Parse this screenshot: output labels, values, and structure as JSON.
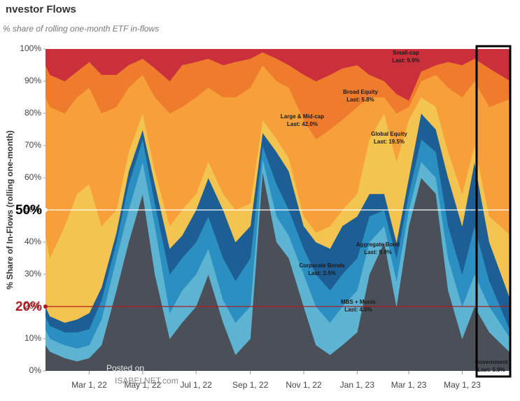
{
  "chart_data": {
    "type": "stacked-area",
    "title": "nvestor Flows",
    "subtitle": "% share of rolling one-month ETF in-flows",
    "y_label": "% Share of In-Flows (rolling one-month)",
    "x": [
      "2022-01-10",
      "2022-01-15",
      "2022-02-01",
      "2022-02-15",
      "2022-03-01",
      "2022-03-15",
      "2022-04-01",
      "2022-04-15",
      "2022-05-01",
      "2022-05-15",
      "2022-06-01",
      "2022-06-15",
      "2022-07-01",
      "2022-07-15",
      "2022-08-01",
      "2022-08-15",
      "2022-09-01",
      "2022-09-15",
      "2022-10-01",
      "2022-10-15",
      "2022-11-01",
      "2022-11-15",
      "2022-12-01",
      "2022-12-15",
      "2023-01-01",
      "2023-01-15",
      "2023-02-01",
      "2023-02-15",
      "2023-03-01",
      "2023-03-15",
      "2023-04-01",
      "2023-04-15",
      "2023-05-01",
      "2023-05-15",
      "2023-06-01",
      "2023-06-24"
    ],
    "xlim": [
      "2022-01-10",
      "2023-06-24"
    ],
    "xticks": [
      {
        "value": "2022-03-01",
        "label": "Mar 1, 22"
      },
      {
        "value": "2022-05-01",
        "label": "May 1, 22"
      },
      {
        "value": "2022-07-01",
        "label": "Jul 1, 22"
      },
      {
        "value": "2022-09-01",
        "label": "Sep 1, 22"
      },
      {
        "value": "2022-11-01",
        "label": "Nov 1, 22"
      },
      {
        "value": "2023-01-01",
        "label": "Jan 1, 23"
      },
      {
        "value": "2023-03-01",
        "label": "Mar 1, 23"
      },
      {
        "value": "2023-05-01",
        "label": "May 1, 23"
      }
    ],
    "ylim": [
      0,
      100
    ],
    "yticks": [
      {
        "value": 0,
        "label": "0%"
      },
      {
        "value": 10,
        "label": "10%"
      },
      {
        "value": 20,
        "label": "20%"
      },
      {
        "value": 30,
        "label": "30%"
      },
      {
        "value": 40,
        "label": "40%"
      },
      {
        "value": 50,
        "label": "50%"
      },
      {
        "value": 60,
        "label": "60%"
      },
      {
        "value": 70,
        "label": "70%"
      },
      {
        "value": 80,
        "label": "80%"
      },
      {
        "value": 90,
        "label": "90%"
      },
      {
        "value": 100,
        "label": "100%"
      }
    ],
    "series": [
      {
        "name": "Government",
        "last_label": "Last: 5.9%",
        "color": "#4b4f58",
        "values": [
          8,
          6,
          4,
          3,
          4,
          8,
          25,
          40,
          55,
          30,
          10,
          15,
          20,
          30,
          15,
          5,
          10,
          62,
          40,
          35,
          20,
          8,
          5,
          8,
          12,
          30,
          40,
          20,
          45,
          60,
          55,
          25,
          10,
          20,
          12,
          5.9
        ]
      },
      {
        "name": "MBS + Munis",
        "last_label": "Last: 4.6%",
        "color": "#5cb4d2",
        "values": [
          5,
          4,
          4,
          4,
          4,
          8,
          10,
          10,
          10,
          15,
          8,
          10,
          10,
          8,
          7,
          10,
          10,
          4,
          8,
          7,
          10,
          12,
          10,
          12,
          13,
          10,
          5,
          8,
          5,
          5,
          5,
          10,
          10,
          10,
          8,
          4.6
        ]
      },
      {
        "name": "Corporate Bonds",
        "last_label": "Last: 2.5%",
        "color": "#2b8fc2",
        "values": [
          4,
          4,
          4,
          5,
          5,
          6,
          5,
          8,
          7,
          7,
          12,
          10,
          10,
          10,
          13,
          13,
          15,
          4,
          10,
          8,
          8,
          10,
          10,
          10,
          10,
          8,
          5,
          7,
          5,
          7,
          8,
          10,
          10,
          15,
          8,
          2.5
        ]
      },
      {
        "name": "Aggregate Bond",
        "last_label": "Last: 9.9%",
        "color": "#1d5f95",
        "values": [
          3,
          3,
          3,
          4,
          5,
          4,
          3,
          4,
          3,
          6,
          8,
          7,
          10,
          12,
          15,
          12,
          10,
          4,
          10,
          12,
          7,
          10,
          13,
          15,
          13,
          7,
          5,
          5,
          5,
          8,
          7,
          15,
          15,
          20,
          12,
          9.9
        ]
      },
      {
        "name": "Global Equity",
        "last_label": "Last: 19.5%",
        "color": "#f4c451",
        "values": [
          22,
          18,
          30,
          39,
          40,
          19,
          7,
          6,
          5,
          4,
          7,
          8,
          5,
          5,
          5,
          10,
          7,
          4,
          4,
          4,
          3,
          3,
          7,
          5,
          7,
          17,
          25,
          25,
          18,
          5,
          7,
          8,
          10,
          5,
          8,
          19.5
        ]
      },
      {
        "name": "Large & Mid-cap",
        "last_label": "Last: 42.0%",
        "color": "#f7a03b",
        "values": [
          43,
          47,
          35,
          30,
          30,
          35,
          32,
          20,
          12,
          23,
          35,
          32,
          30,
          23,
          30,
          35,
          36,
          17,
          18,
          22,
          30,
          29,
          30,
          28,
          27,
          13,
          5,
          15,
          4,
          5,
          10,
          20,
          30,
          20,
          34,
          42.0
        ]
      },
      {
        "name": "Broad Equity",
        "last_label": "Last: 5.8%",
        "color": "#ef7b2c",
        "values": [
          10,
          10,
          10,
          8,
          8,
          12,
          10,
          7,
          5,
          9,
          10,
          13,
          11,
          9,
          10,
          11,
          9,
          4,
          7,
          7,
          14,
          18,
          17,
          16,
          13,
          7,
          5,
          6,
          2,
          3,
          3,
          8,
          10,
          7,
          12,
          5.8
        ]
      },
      {
        "name": "Small-cap",
        "last_label": "Last: 9.9%",
        "color": "#c9303c",
        "values": [
          5,
          8,
          10,
          7,
          4,
          8,
          8,
          5,
          3,
          6,
          10,
          5,
          4,
          3,
          5,
          4,
          3,
          1,
          3,
          5,
          8,
          10,
          8,
          6,
          5,
          8,
          10,
          14,
          16,
          7,
          5,
          4,
          5,
          3,
          6,
          9.9
        ]
      }
    ],
    "reference_lines": [
      {
        "value": 50,
        "label": "50%",
        "color": "#ffffff",
        "label_color": "#000000"
      },
      {
        "value": 20,
        "label": "20%",
        "color": "#b01c22",
        "label_color": "#b01c22"
      }
    ],
    "watermark": [
      "Posted on",
      "ISABELNET.com"
    ]
  }
}
